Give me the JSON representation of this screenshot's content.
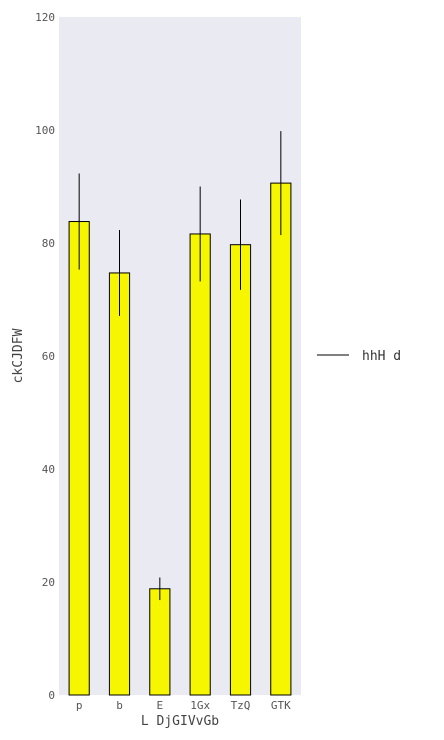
{
  "chart_data": {
    "type": "bar",
    "title": "",
    "xlabel": "L DjGIVvGb",
    "ylabel": "ckCJDFW",
    "categories": [
      "p",
      "b",
      "E",
      "1Gx",
      "TzQ",
      "GTK"
    ],
    "series": [
      {
        "name": "hhH d",
        "values": [
          83.8,
          74.7,
          18.8,
          81.6,
          79.7,
          90.6
        ],
        "errors": [
          8.5,
          7.6,
          2.0,
          8.4,
          8.0,
          9.2
        ]
      }
    ],
    "ylim": [
      0,
      120
    ],
    "yticks": [
      "0",
      "20",
      "40",
      "60",
      "80",
      "100",
      "120"
    ],
    "grid": false,
    "legend": "center-right",
    "colors": {
      "bar_fill": "#f6f600",
      "bar_edge": "#000000",
      "plot_background": "#eaeaf2",
      "error_bar": "#000000"
    }
  }
}
